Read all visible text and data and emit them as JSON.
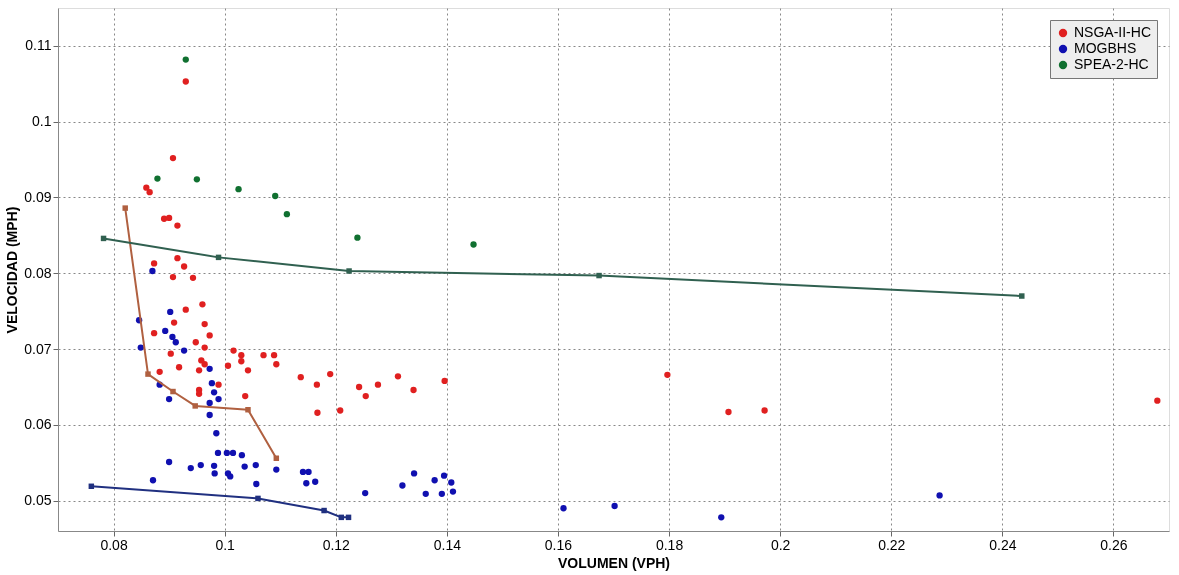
{
  "chart_data": {
    "type": "scatter",
    "xlabel": "VOLUMEN (VPH)",
    "ylabel": "VELOCIDAD (MPH)",
    "xlim": [
      0.07,
      0.27
    ],
    "ylim": [
      0.046,
      0.115
    ],
    "xticks": [
      0.08,
      0.1,
      0.12,
      0.14,
      0.16,
      0.18,
      0.2,
      0.22,
      0.24,
      0.26
    ],
    "yticks": [
      0.05,
      0.06,
      0.07,
      0.08,
      0.09,
      0.1,
      0.11
    ],
    "grid": true,
    "legend": "top right",
    "marker": "circle",
    "series": [
      {
        "name": "NSGA-II-HC",
        "color": "#e02020",
        "x": [
          0.0907,
          0.093,
          0.0859,
          0.0865,
          0.0891,
          0.09,
          0.0915,
          0.0915,
          0.0873,
          0.0927,
          0.0907,
          0.0943,
          0.093,
          0.096,
          0.0909,
          0.0964,
          0.0973,
          0.0873,
          0.0948,
          0.0964,
          0.0903,
          0.0918,
          0.0958,
          0.0964,
          0.0954,
          0.0883,
          0.0954,
          0.0954,
          0.0989,
          0.1006,
          0.1016,
          0.103,
          0.103,
          0.1042,
          0.107,
          0.1089,
          0.1093,
          0.1137,
          0.1037,
          0.1166,
          0.119,
          0.1167,
          0.1208,
          0.1242,
          0.1254,
          0.1276,
          0.1312,
          0.134,
          0.1396,
          0.1797,
          0.1907,
          0.1972,
          0.2679
        ],
        "values": [
          0.0952,
          0.1053,
          0.0913,
          0.0907,
          0.0872,
          0.0873,
          0.0863,
          0.082,
          0.0813,
          0.0809,
          0.0795,
          0.0794,
          0.0752,
          0.0759,
          0.0735,
          0.0733,
          0.0718,
          0.0721,
          0.0709,
          0.0702,
          0.0694,
          0.0676,
          0.0685,
          0.068,
          0.0672,
          0.067,
          0.0646,
          0.0641,
          0.0653,
          0.0678,
          0.0698,
          0.0692,
          0.0684,
          0.0672,
          0.0692,
          0.0692,
          0.068,
          0.0663,
          0.0638,
          0.0653,
          0.0667,
          0.0616,
          0.0619,
          0.065,
          0.0638,
          0.0653,
          0.0664,
          0.0646,
          0.0658,
          0.0666,
          0.0617,
          0.0619,
          0.0632
        ]
      },
      {
        "name": "MOGBHS",
        "color": "#1010b0",
        "x": [
          0.087,
          0.0846,
          0.0849,
          0.0893,
          0.0902,
          0.0906,
          0.0912,
          0.0927,
          0.0883,
          0.09,
          0.0973,
          0.0977,
          0.0981,
          0.0973,
          0.0973,
          0.0989,
          0.0985,
          0.0988,
          0.1004,
          0.1015,
          0.1031,
          0.09,
          0.0939,
          0.0957,
          0.0981,
          0.0982,
          0.1006,
          0.101,
          0.1036,
          0.1056,
          0.1057,
          0.0871,
          0.1093,
          0.1141,
          0.1151,
          0.1147,
          0.1163,
          0.1253,
          0.132,
          0.1341,
          0.1362,
          0.1378,
          0.1391,
          0.1395,
          0.1408,
          0.1411,
          0.161,
          0.1702,
          0.1894,
          0.2287
        ],
        "values": [
          0.0803,
          0.0738,
          0.0702,
          0.0724,
          0.0749,
          0.0716,
          0.0709,
          0.0698,
          0.0653,
          0.0634,
          0.0674,
          0.0655,
          0.0643,
          0.0629,
          0.0613,
          0.0634,
          0.0589,
          0.0563,
          0.0563,
          0.0563,
          0.056,
          0.0551,
          0.0543,
          0.0547,
          0.0546,
          0.0536,
          0.0536,
          0.0532,
          0.0545,
          0.0547,
          0.0522,
          0.0527,
          0.0541,
          0.0538,
          0.0538,
          0.0523,
          0.0525,
          0.051,
          0.052,
          0.0536,
          0.0509,
          0.0527,
          0.0509,
          0.0533,
          0.0524,
          0.0512,
          0.049,
          0.0493,
          0.0478,
          0.0507
        ]
      },
      {
        "name": "SPEA-2-HC",
        "color": "#107030",
        "x": [
          0.0879,
          0.093,
          0.095,
          0.1025,
          0.1091,
          0.1112,
          0.1239,
          0.1448
        ],
        "values": [
          0.0925,
          0.1082,
          0.0924,
          0.0911,
          0.0902,
          0.0878,
          0.0847,
          0.0838
        ]
      },
      {
        "type": "line",
        "color": "#b06040",
        "marker": "square",
        "line_style": "solid",
        "x": [
          0.0821,
          0.0862,
          0.0907,
          0.0947,
          0.1042,
          0.1093
        ],
        "values": [
          0.0886,
          0.0667,
          0.0644,
          0.0625,
          0.062,
          0.0556
        ]
      },
      {
        "type": "line",
        "color": "#203080",
        "marker": "square",
        "line_style": "solid",
        "x": [
          0.076,
          0.106,
          0.1179,
          0.121,
          0.1223
        ],
        "values": [
          0.0519,
          0.0503,
          0.0487,
          0.0478,
          0.0478
        ]
      },
      {
        "type": "line",
        "color": "#306050",
        "marker": "square",
        "line_style": "solid",
        "x": [
          0.0782,
          0.0989,
          0.1224,
          0.1674,
          0.2435
        ],
        "values": [
          0.0846,
          0.0821,
          0.0803,
          0.0797,
          0.077
        ]
      }
    ]
  }
}
